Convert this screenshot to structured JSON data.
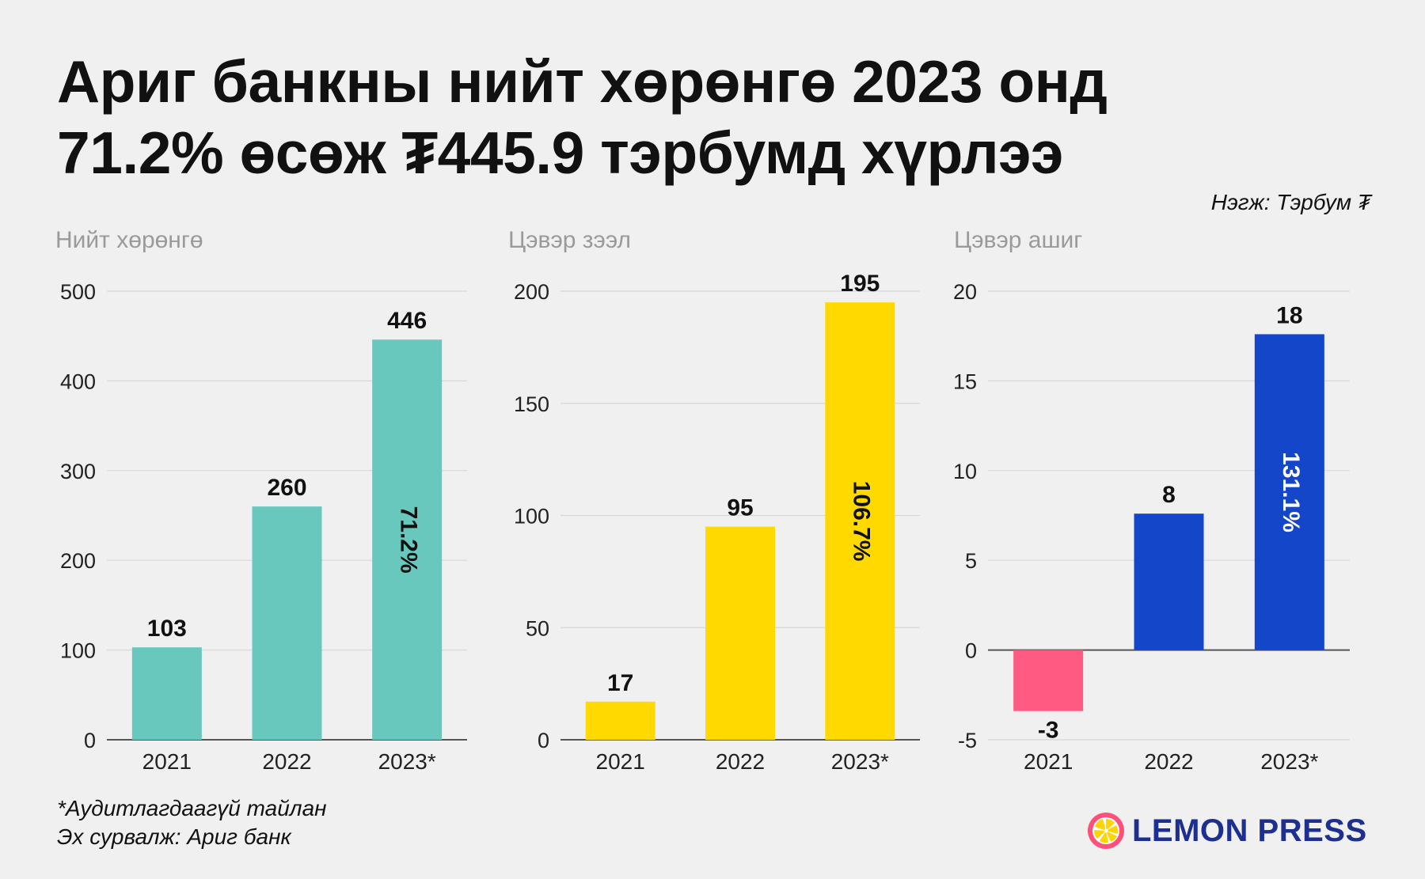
{
  "headline": {
    "line1": "Ариг банкны нийт хөрөнгө 2023 онд",
    "line2": "71.2% өсөж ₮445.9 тэрбумд хүрлээ"
  },
  "unit_note": "Нэгж: Тэрбум ₮",
  "footnote": {
    "unaudited": "*Аудитлагдаагүй тайлан",
    "source": "Эх сурвалж: Ариг банк"
  },
  "logo": {
    "text": "LEMON PRESS"
  },
  "chart_data": [
    {
      "type": "bar",
      "subtitle": "Нийт хөрөнгө",
      "categories": [
        "2021",
        "2022",
        "2023*"
      ],
      "values": [
        103,
        260,
        446
      ],
      "value_labels": [
        "103",
        "260",
        "446"
      ],
      "growth_label": "71.2%",
      "ylim": [
        0,
        500
      ],
      "yticks": [
        0,
        100,
        200,
        300,
        400,
        500
      ],
      "colors": [
        "#69c8bd",
        "#69c8bd",
        "#69c8bd"
      ],
      "growth_color": "#111111",
      "grid": true
    },
    {
      "type": "bar",
      "subtitle": "Цэвэр зээл",
      "categories": [
        "2021",
        "2022",
        "2023*"
      ],
      "values": [
        17,
        95,
        195
      ],
      "value_labels": [
        "17",
        "95",
        "195"
      ],
      "growth_label": "106.7%",
      "ylim": [
        0,
        200
      ],
      "yticks": [
        0,
        50,
        100,
        150,
        200
      ],
      "colors": [
        "#ffd900",
        "#ffd900",
        "#ffd900"
      ],
      "growth_color": "#111111",
      "grid": true
    },
    {
      "type": "bar",
      "subtitle": "Цэвэр ашиг",
      "categories": [
        "2021",
        "2022",
        "2023*"
      ],
      "values": [
        -3.4,
        7.6,
        17.6
      ],
      "value_labels": [
        "-3",
        "8",
        "18"
      ],
      "growth_label": "131.1%",
      "ylim": [
        -5,
        20
      ],
      "yticks": [
        -5,
        0,
        5,
        10,
        15,
        20
      ],
      "colors": [
        "#ff5a82",
        "#1346c8",
        "#1346c8"
      ],
      "growth_color": "#ffffff",
      "grid": true
    }
  ]
}
